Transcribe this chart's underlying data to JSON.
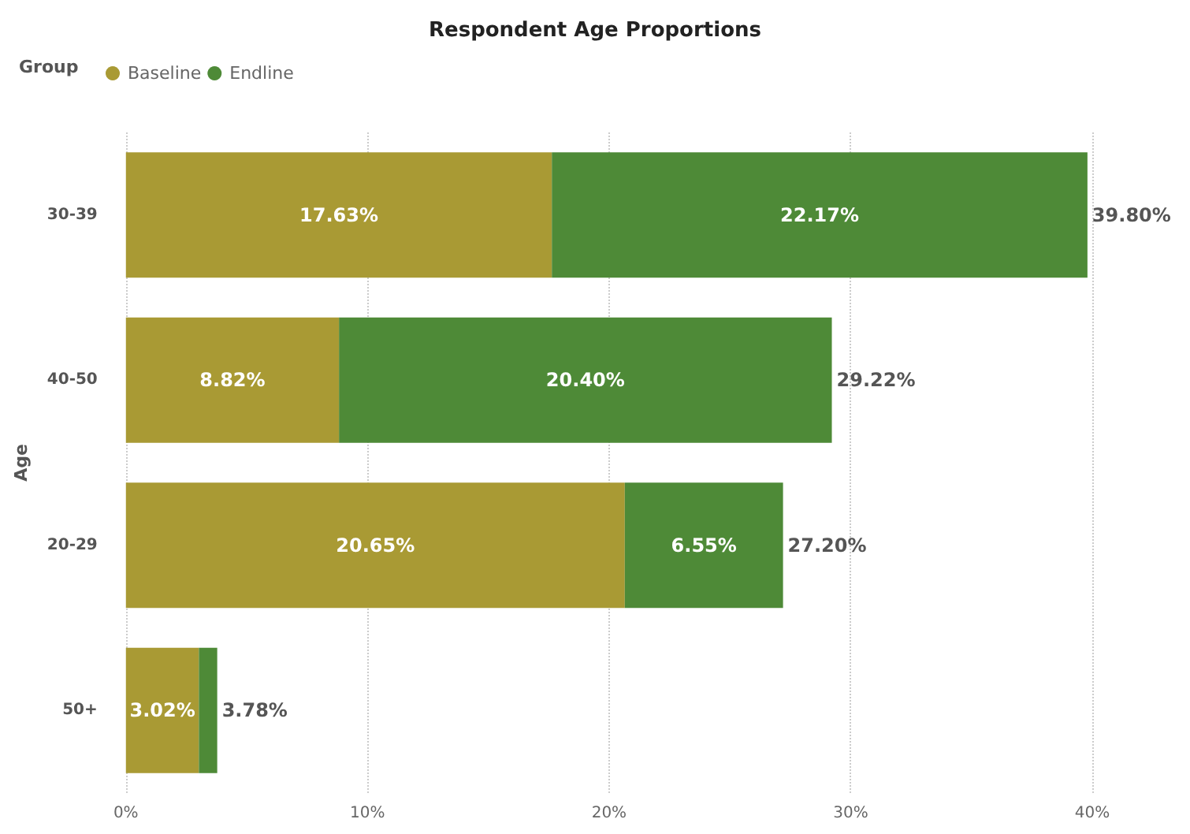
{
  "chart_data": {
    "type": "bar",
    "title": "Respondent Age Proportions",
    "ylabel": "Age",
    "legend_title": "Group",
    "orientation": "horizontal",
    "stacked": true,
    "categories": [
      "30-39",
      "40-50",
      "20-29",
      "50+"
    ],
    "series": [
      {
        "name": "Baseline",
        "color": "#a99a34",
        "values": [
          17.63,
          8.82,
          20.65,
          3.02
        ],
        "value_labels": [
          "17.63%",
          "8.82%",
          "20.65%",
          "3.02%"
        ]
      },
      {
        "name": "Endline",
        "color": "#4e8a37",
        "values": [
          22.17,
          20.4,
          6.55,
          0.76
        ],
        "value_labels": [
          "22.17%",
          "20.40%",
          "6.55%",
          null
        ]
      }
    ],
    "totals": [
      "39.80%",
      "29.22%",
      "27.20%",
      "3.78%"
    ],
    "xlim": [
      0,
      40
    ],
    "xticks": [
      {
        "value": 0,
        "label": "0%"
      },
      {
        "value": 10,
        "label": "10%"
      },
      {
        "value": 20,
        "label": "20%"
      },
      {
        "value": 30,
        "label": "30%"
      },
      {
        "value": 40,
        "label": "40%"
      }
    ],
    "grid": "x",
    "legend": "top left"
  }
}
